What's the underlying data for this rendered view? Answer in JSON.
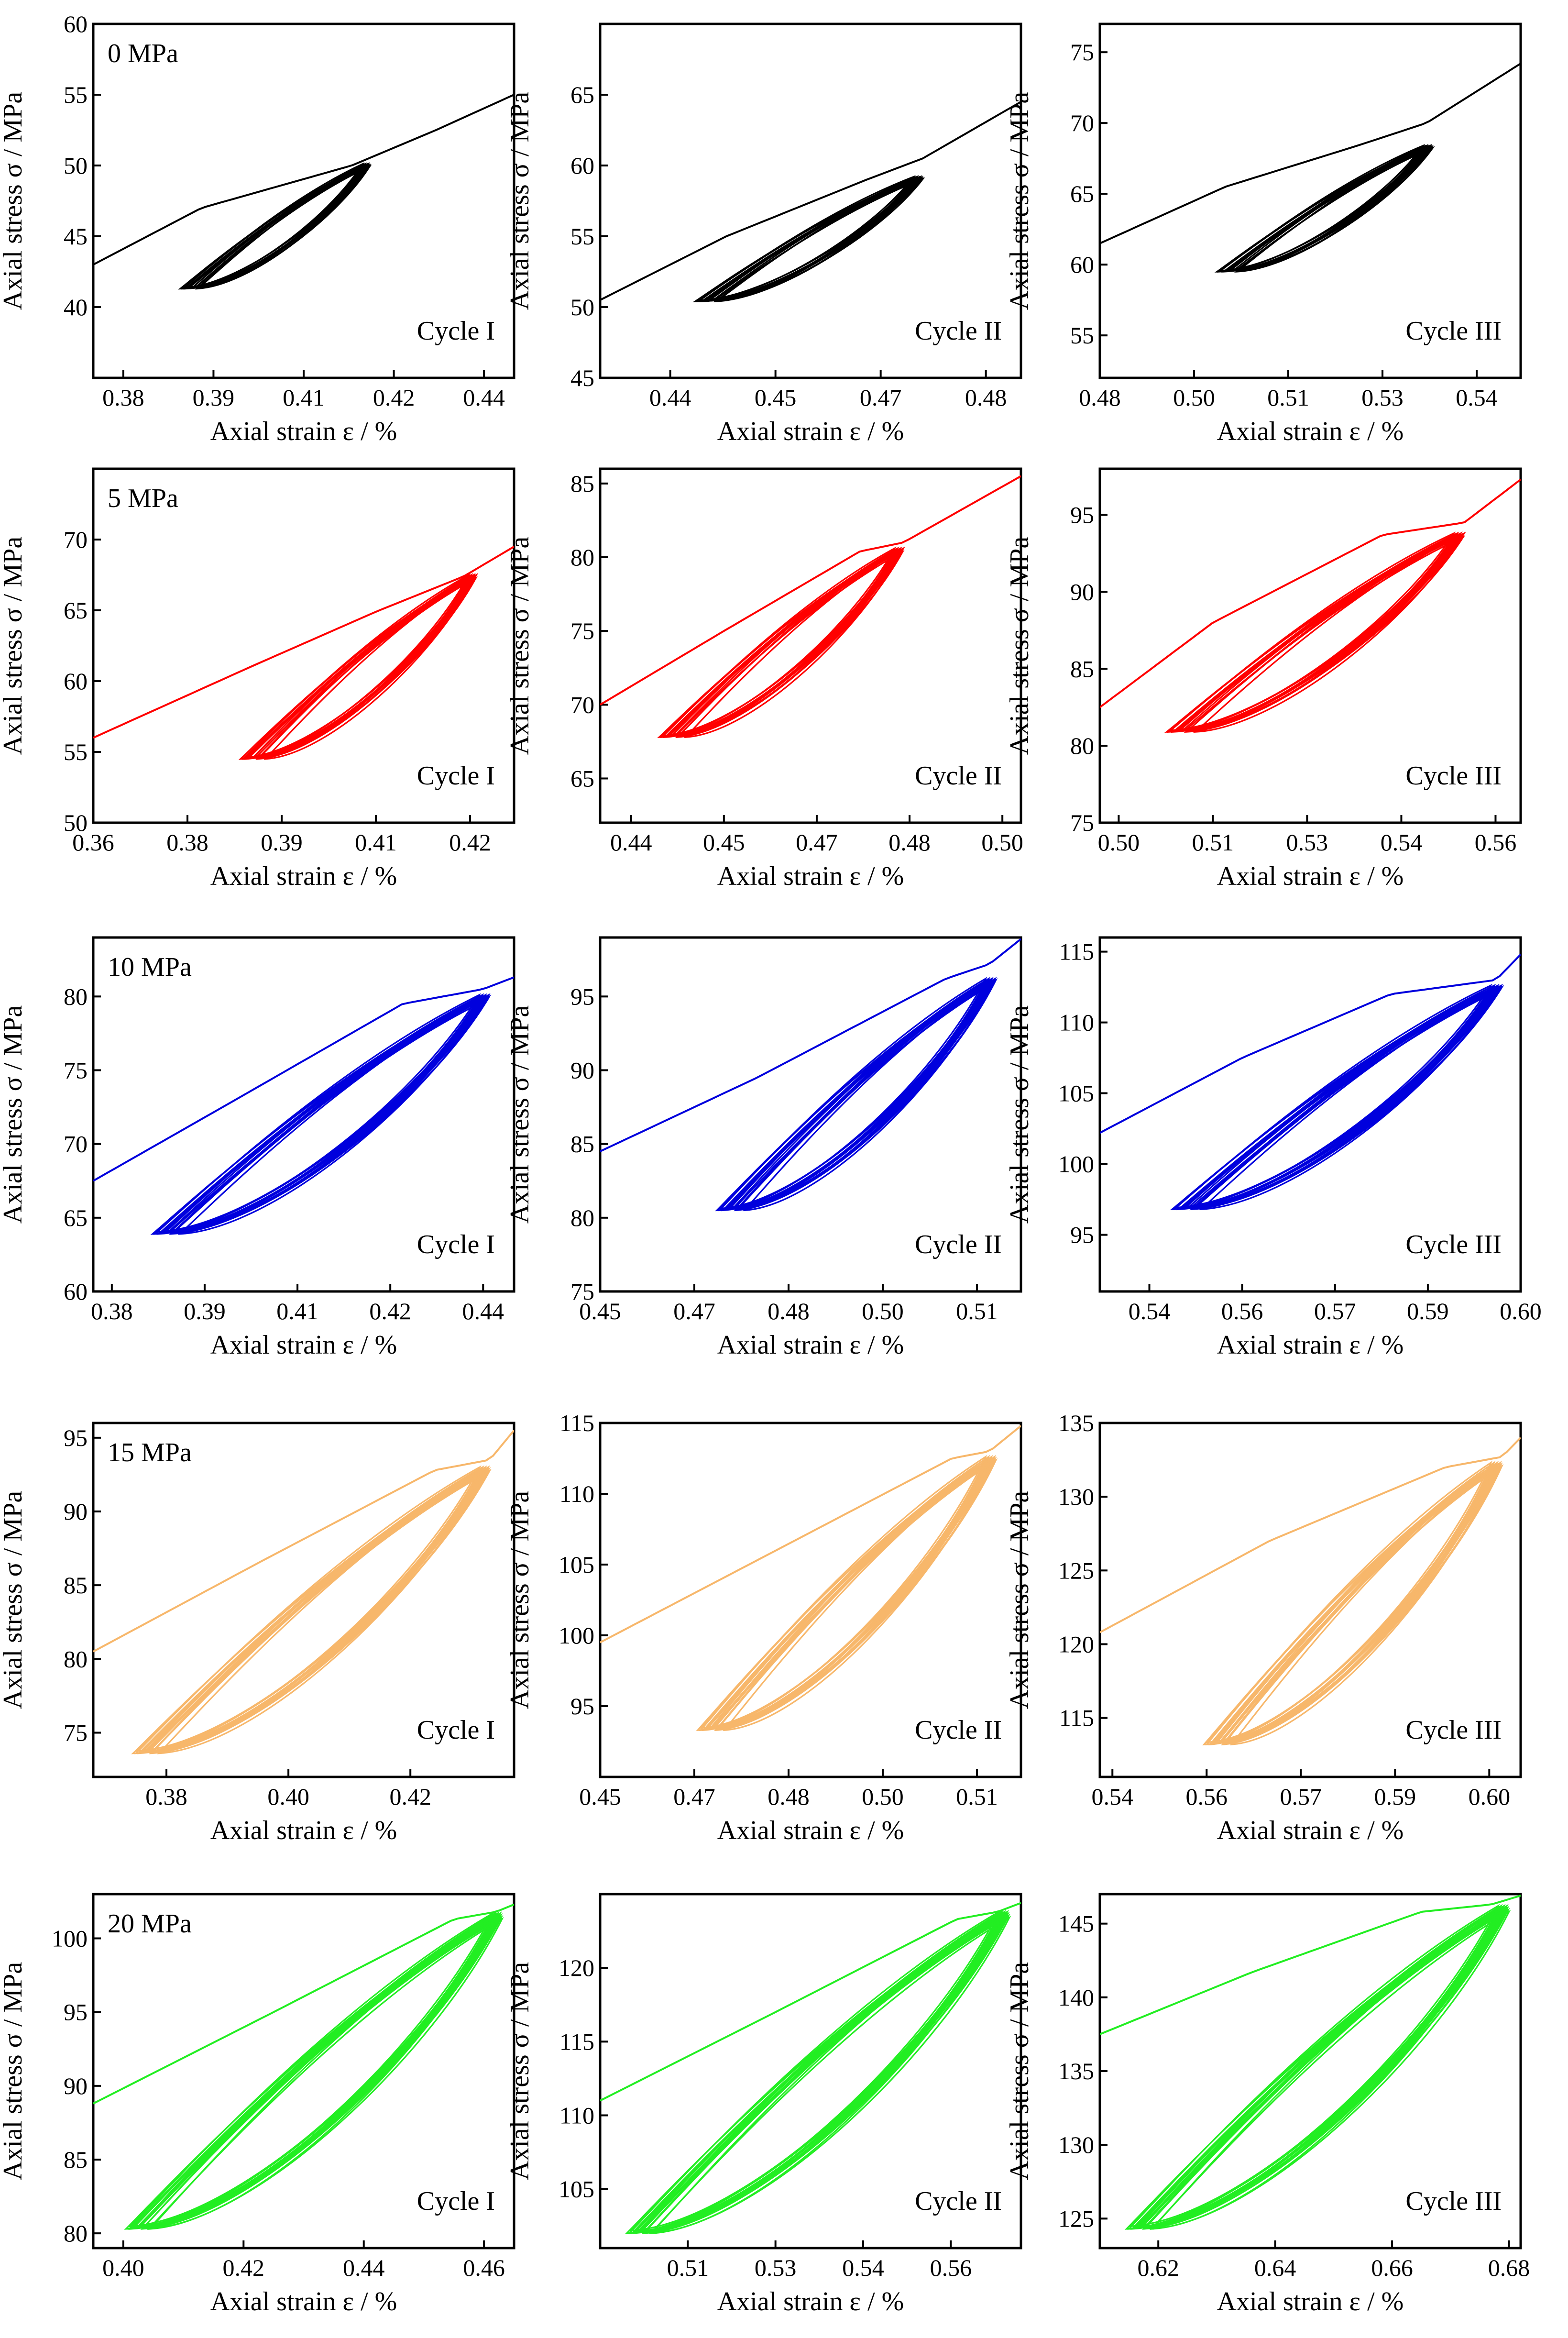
{
  "colors": {
    "0 MPa": "#000000",
    "5 MPa": "#ff0000",
    "10 MPa": "#0000dd",
    "15 MPa": "#f7b76b",
    "20 MPa": "#22ee22"
  },
  "chart_data": [
    {
      "type": "line",
      "pressure": "0 MPa",
      "cycle": "Cycle I",
      "xlabel": "Axial strain ε / %",
      "ylabel": "Axial stress σ / MPa",
      "xlim": [
        0.375,
        0.445
      ],
      "ylim": [
        35,
        60
      ],
      "xticks": [
        "0.38",
        "0.39",
        "0.41",
        "0.42",
        "0.44"
      ],
      "xtick_values": [
        0.38,
        0.395,
        0.41,
        0.425,
        0.44
      ],
      "yticks": [
        "40",
        "45",
        "50",
        "55",
        "60"
      ],
      "ytick_values": [
        40,
        45,
        50,
        55,
        60
      ],
      "envelope": {
        "x": [
          0.375,
          0.393,
          0.418,
          0.432,
          0.445
        ],
        "y": [
          43.0,
          47.0,
          50.0,
          52.5,
          55.0
        ]
      },
      "loops": {
        "xmin": 0.39,
        "xmax": 0.421,
        "ymin": 41.3,
        "ymax": 50.1,
        "count": 12,
        "spread": 0.0022
      }
    },
    {
      "type": "line",
      "pressure": "0 MPa",
      "cycle": "Cycle II",
      "xlabel": "Axial strain ε / %",
      "ylabel": "Axial stress σ / MPa",
      "xlim": [
        0.43,
        0.49
      ],
      "ylim": [
        45,
        70
      ],
      "xticks": [
        "0.44",
        "0.45",
        "0.47",
        "0.48"
      ],
      "xtick_values": [
        0.44,
        0.455,
        0.47,
        0.485
      ],
      "yticks": [
        "45",
        "50",
        "55",
        "60",
        "65"
      ],
      "ytick_values": [
        45,
        50,
        55,
        60,
        65
      ],
      "envelope": {
        "x": [
          0.43,
          0.448,
          0.468,
          0.476,
          0.49
        ],
        "y": [
          50.5,
          55.0,
          59.0,
          60.5,
          64.5
        ]
      },
      "loops": {
        "xmin": 0.444,
        "xmax": 0.476,
        "ymin": 50.4,
        "ymax": 59.2,
        "count": 12,
        "spread": 0.0024
      }
    },
    {
      "type": "line",
      "pressure": "0 MPa",
      "cycle": "Cycle III",
      "xlabel": "Axial strain ε / %",
      "ylabel": "Axial stress σ / MPa",
      "xlim": [
        0.48,
        0.547
      ],
      "ylim": [
        52,
        77
      ],
      "xticks": [
        "0.48",
        "0.50",
        "0.51",
        "0.53",
        "0.54"
      ],
      "xtick_values": [
        0.48,
        0.495,
        0.51,
        0.525,
        0.54
      ],
      "yticks": [
        "55",
        "60",
        "65",
        "70",
        "75"
      ],
      "ytick_values": [
        55,
        60,
        65,
        70,
        75
      ],
      "envelope": {
        "x": [
          0.48,
          0.5,
          0.521,
          0.532,
          0.547
        ],
        "y": [
          61.5,
          65.5,
          68.4,
          70.0,
          74.2
        ]
      },
      "loops": {
        "xmin": 0.499,
        "xmax": 0.533,
        "ymin": 59.5,
        "ymax": 68.4,
        "count": 12,
        "spread": 0.0028
      }
    },
    {
      "type": "line",
      "pressure": "5 MPa",
      "cycle": "Cycle I",
      "xlabel": "Axial strain ε / %",
      "ylabel": "Axial stress σ / MPa",
      "xlim": [
        0.36,
        0.427
      ],
      "ylim": [
        50,
        75
      ],
      "xticks": [
        "0.36",
        "0.38",
        "0.39",
        "0.41",
        "0.42"
      ],
      "xtick_values": [
        0.36,
        0.375,
        0.39,
        0.405,
        0.42
      ],
      "yticks": [
        "50",
        "55",
        "60",
        "65",
        "70"
      ],
      "ytick_values": [
        50,
        55,
        60,
        65,
        70
      ],
      "envelope": {
        "x": [
          0.36,
          0.385,
          0.405,
          0.419,
          0.427
        ],
        "y": [
          56.0,
          61.0,
          64.9,
          67.4,
          69.5
        ]
      },
      "loops": {
        "xmin": 0.384,
        "xmax": 0.421,
        "ymin": 54.5,
        "ymax": 67.5,
        "count": 13,
        "spread": 0.0022
      }
    },
    {
      "type": "line",
      "pressure": "5 MPa",
      "cycle": "Cycle II",
      "xlabel": "Axial strain ε / %",
      "ylabel": "Axial stress σ / MPa",
      "xlim": [
        0.435,
        0.503
      ],
      "ylim": [
        62,
        86
      ],
      "xticks": [
        "0.44",
        "0.45",
        "0.47",
        "0.48",
        "0.50"
      ],
      "xtick_values": [
        0.44,
        0.455,
        0.47,
        0.485,
        0.5
      ],
      "yticks": [
        "65",
        "70",
        "75",
        "80",
        "85"
      ],
      "ytick_values": [
        65,
        70,
        75,
        80,
        85
      ],
      "envelope": {
        "x": [
          0.435,
          0.455,
          0.477,
          0.484,
          0.503
        ],
        "y": [
          70.0,
          75.0,
          80.4,
          81.0,
          85.5
        ]
      },
      "loops": {
        "xmin": 0.445,
        "xmax": 0.484,
        "ymin": 67.8,
        "ymax": 80.6,
        "count": 13,
        "spread": 0.0026
      }
    },
    {
      "type": "line",
      "pressure": "5 MPa",
      "cycle": "Cycle III",
      "xlabel": "Axial strain ε / %",
      "ylabel": "Axial stress σ / MPa",
      "xlim": [
        0.497,
        0.564
      ],
      "ylim": [
        75,
        98
      ],
      "xticks": [
        "0.50",
        "0.51",
        "0.53",
        "0.54",
        "0.56"
      ],
      "xtick_values": [
        0.5,
        0.515,
        0.53,
        0.545,
        0.56
      ],
      "yticks": [
        "75",
        "80",
        "85",
        "90",
        "95"
      ],
      "ytick_values": [
        75,
        80,
        85,
        90,
        95
      ],
      "envelope": {
        "x": [
          0.497,
          0.515,
          0.542,
          0.555,
          0.564
        ],
        "y": [
          82.5,
          88.0,
          93.7,
          94.5,
          97.3
        ]
      },
      "loops": {
        "xmin": 0.508,
        "xmax": 0.555,
        "ymin": 80.9,
        "ymax": 93.8,
        "count": 13,
        "spread": 0.003
      }
    },
    {
      "type": "line",
      "pressure": "10 MPa",
      "cycle": "Cycle I",
      "xlabel": "Axial strain ε / %",
      "ylabel": "Axial stress σ / MPa",
      "xlim": [
        0.377,
        0.445
      ],
      "ylim": [
        60,
        84
      ],
      "xticks": [
        "0.38",
        "0.39",
        "0.41",
        "0.42",
        "0.44"
      ],
      "xtick_values": [
        0.38,
        0.395,
        0.41,
        0.425,
        0.44
      ],
      "yticks": [
        "60",
        "65",
        "70",
        "75",
        "80"
      ],
      "ytick_values": [
        60,
        65,
        70,
        75,
        80
      ],
      "envelope": {
        "x": [
          0.377,
          0.4,
          0.427,
          0.44,
          0.445
        ],
        "y": [
          67.5,
          73.0,
          79.5,
          80.5,
          81.3
        ]
      },
      "loops": {
        "xmin": 0.387,
        "xmax": 0.441,
        "ymin": 63.9,
        "ymax": 80.1,
        "count": 14,
        "spread": 0.003
      }
    },
    {
      "type": "line",
      "pressure": "10 MPa",
      "cycle": "Cycle II",
      "xlabel": "Axial strain ε / %",
      "ylabel": "Axial stress σ / MPa",
      "xlim": [
        0.45,
        0.517
      ],
      "ylim": [
        75,
        99
      ],
      "xticks": [
        "0.45",
        "0.47",
        "0.48",
        "0.50",
        "0.51"
      ],
      "xtick_values": [
        0.45,
        0.465,
        0.48,
        0.495,
        0.51
      ],
      "yticks": [
        "75",
        "80",
        "85",
        "90",
        "95"
      ],
      "ytick_values": [
        75,
        80,
        85,
        90,
        95
      ],
      "envelope": {
        "x": [
          0.45,
          0.475,
          0.505,
          0.512,
          0.517
        ],
        "y": [
          84.5,
          89.5,
          96.2,
          97.2,
          98.9
        ]
      },
      "loops": {
        "xmin": 0.469,
        "xmax": 0.513,
        "ymin": 80.5,
        "ymax": 96.2,
        "count": 14,
        "spread": 0.003
      }
    },
    {
      "type": "line",
      "pressure": "10 MPa",
      "cycle": "Cycle III",
      "xlabel": "Axial strain ε / %",
      "ylabel": "Axial stress σ / MPa",
      "xlim": [
        0.532,
        0.6
      ],
      "ylim": [
        91,
        116
      ],
      "xticks": [
        "0.54",
        "0.56",
        "0.57",
        "0.59",
        "0.60"
      ],
      "xtick_values": [
        0.54,
        0.555,
        0.57,
        0.585,
        0.6
      ],
      "yticks": [
        "95",
        "100",
        "105",
        "110",
        "115"
      ],
      "ytick_values": [
        95,
        100,
        105,
        110,
        115
      ],
      "envelope": {
        "x": [
          0.532,
          0.555,
          0.579,
          0.596,
          0.6
        ],
        "y": [
          102.2,
          107.5,
          112.0,
          113.0,
          114.8
        ]
      },
      "loops": {
        "xmin": 0.544,
        "xmax": 0.597,
        "ymin": 96.8,
        "ymax": 112.6,
        "count": 14,
        "spread": 0.0034
      }
    },
    {
      "type": "line",
      "pressure": "15 MPa",
      "cycle": "Cycle I",
      "xlabel": "Axial strain ε / %",
      "ylabel": "Axial stress σ / MPa",
      "xlim": [
        0.368,
        0.437
      ],
      "ylim": [
        72,
        96
      ],
      "xticks": [
        "0.38",
        "0.40",
        "0.42"
      ],
      "xtick_values": [
        0.38,
        0.4,
        0.42
      ],
      "yticks": [
        "75",
        "80",
        "85",
        "90",
        "95"
      ],
      "ytick_values": [
        75,
        80,
        85,
        90,
        95
      ],
      "envelope": {
        "x": [
          0.368,
          0.395,
          0.424,
          0.433,
          0.437
        ],
        "y": [
          80.5,
          86.5,
          92.8,
          93.5,
          95.5
        ]
      },
      "loops": {
        "xmin": 0.375,
        "xmax": 0.433,
        "ymin": 73.6,
        "ymax": 93.0,
        "count": 15,
        "spread": 0.003
      }
    },
    {
      "type": "line",
      "pressure": "15 MPa",
      "cycle": "Cycle II",
      "xlabel": "Axial strain ε / %",
      "ylabel": "Axial stress σ / MPa",
      "xlim": [
        0.45,
        0.517
      ],
      "ylim": [
        90,
        115
      ],
      "xticks": [
        "0.45",
        "0.47",
        "0.48",
        "0.50",
        "0.51"
      ],
      "xtick_values": [
        0.45,
        0.465,
        0.48,
        0.495,
        0.51
      ],
      "yticks": [
        "95",
        "100",
        "105",
        "110",
        "115"
      ],
      "ytick_values": [
        95,
        100,
        105,
        110,
        115
      ],
      "envelope": {
        "x": [
          0.45,
          0.478,
          0.506,
          0.512,
          0.517
        ],
        "y": [
          99.5,
          106.0,
          112.5,
          113.0,
          114.8
        ]
      },
      "loops": {
        "xmin": 0.466,
        "xmax": 0.513,
        "ymin": 93.3,
        "ymax": 112.6,
        "count": 15,
        "spread": 0.003
      }
    },
    {
      "type": "line",
      "pressure": "15 MPa",
      "cycle": "Cycle III",
      "xlabel": "Axial strain ε / %",
      "ylabel": "Axial stress σ / MPa",
      "xlim": [
        0.538,
        0.605
      ],
      "ylim": [
        111,
        135
      ],
      "xticks": [
        "0.54",
        "0.56",
        "0.57",
        "0.59",
        "0.60"
      ],
      "xtick_values": [
        0.54,
        0.555,
        0.57,
        0.585,
        0.6
      ],
      "yticks": [
        "115",
        "120",
        "125",
        "130",
        "135"
      ],
      "ytick_values": [
        115,
        120,
        125,
        130,
        135
      ],
      "envelope": {
        "x": [
          0.538,
          0.565,
          0.593,
          0.602,
          0.605
        ],
        "y": [
          120.8,
          127.0,
          132.0,
          132.7,
          134.0
        ]
      },
      "loops": {
        "xmin": 0.555,
        "xmax": 0.602,
        "ymin": 113.2,
        "ymax": 132.3,
        "count": 15,
        "spread": 0.0032
      }
    },
    {
      "type": "line",
      "pressure": "20 MPa",
      "cycle": "Cycle I",
      "xlabel": "Axial strain ε / %",
      "ylabel": "Axial stress σ / MPa",
      "xlim": [
        0.395,
        0.465
      ],
      "ylim": [
        79,
        103
      ],
      "xticks": [
        "0.40",
        "0.42",
        "0.44",
        "0.46"
      ],
      "xtick_values": [
        0.4,
        0.42,
        0.44,
        0.46
      ],
      "yticks": [
        "80",
        "85",
        "90",
        "95",
        "100"
      ],
      "ytick_values": [
        80,
        85,
        90,
        95,
        100
      ],
      "envelope": {
        "x": [
          0.395,
          0.425,
          0.455,
          0.462,
          0.465
        ],
        "y": [
          88.8,
          95.0,
          101.3,
          101.8,
          102.3
        ]
      },
      "loops": {
        "xmin": 0.401,
        "xmax": 0.463,
        "ymin": 80.3,
        "ymax": 101.7,
        "count": 16,
        "spread": 0.0028
      }
    },
    {
      "type": "line",
      "pressure": "20 MPa",
      "cycle": "Cycle II",
      "xlabel": "Axial strain ε / %",
      "ylabel": "Axial stress σ / MPa",
      "xlim": [
        0.495,
        0.567
      ],
      "ylim": [
        101,
        125
      ],
      "xticks": [
        "0.51",
        "0.53",
        "0.54",
        "0.56"
      ],
      "xtick_values": [
        0.51,
        0.525,
        0.54,
        0.555
      ],
      "yticks": [
        "105",
        "110",
        "115",
        "120"
      ],
      "ytick_values": [
        105,
        110,
        115,
        120
      ],
      "envelope": {
        "x": [
          0.495,
          0.525,
          0.556,
          0.563,
          0.567
        ],
        "y": [
          111.0,
          117.0,
          123.3,
          123.8,
          124.4
        ]
      },
      "loops": {
        "xmin": 0.5,
        "xmax": 0.565,
        "ymin": 102.0,
        "ymax": 123.8,
        "count": 16,
        "spread": 0.0032
      }
    },
    {
      "type": "line",
      "pressure": "20 MPa",
      "cycle": "Cycle III",
      "xlabel": "Axial strain ε / %",
      "ylabel": "Axial stress σ / MPa",
      "xlim": [
        0.61,
        0.682
      ],
      "ylim": [
        123,
        147
      ],
      "xticks": [
        "0.62",
        "0.64",
        "0.66",
        "0.68"
      ],
      "xtick_values": [
        0.62,
        0.64,
        0.66,
        0.68
      ],
      "yticks": [
        "125",
        "130",
        "135",
        "140",
        "145"
      ],
      "ytick_values": [
        125,
        130,
        135,
        140,
        145
      ],
      "envelope": {
        "x": [
          0.61,
          0.636,
          0.665,
          0.677,
          0.682
        ],
        "y": [
          137.5,
          141.7,
          145.8,
          146.3,
          146.9
        ]
      },
      "loops": {
        "xmin": 0.615,
        "xmax": 0.68,
        "ymin": 124.3,
        "ymax": 146.2,
        "count": 16,
        "spread": 0.0034
      }
    }
  ]
}
